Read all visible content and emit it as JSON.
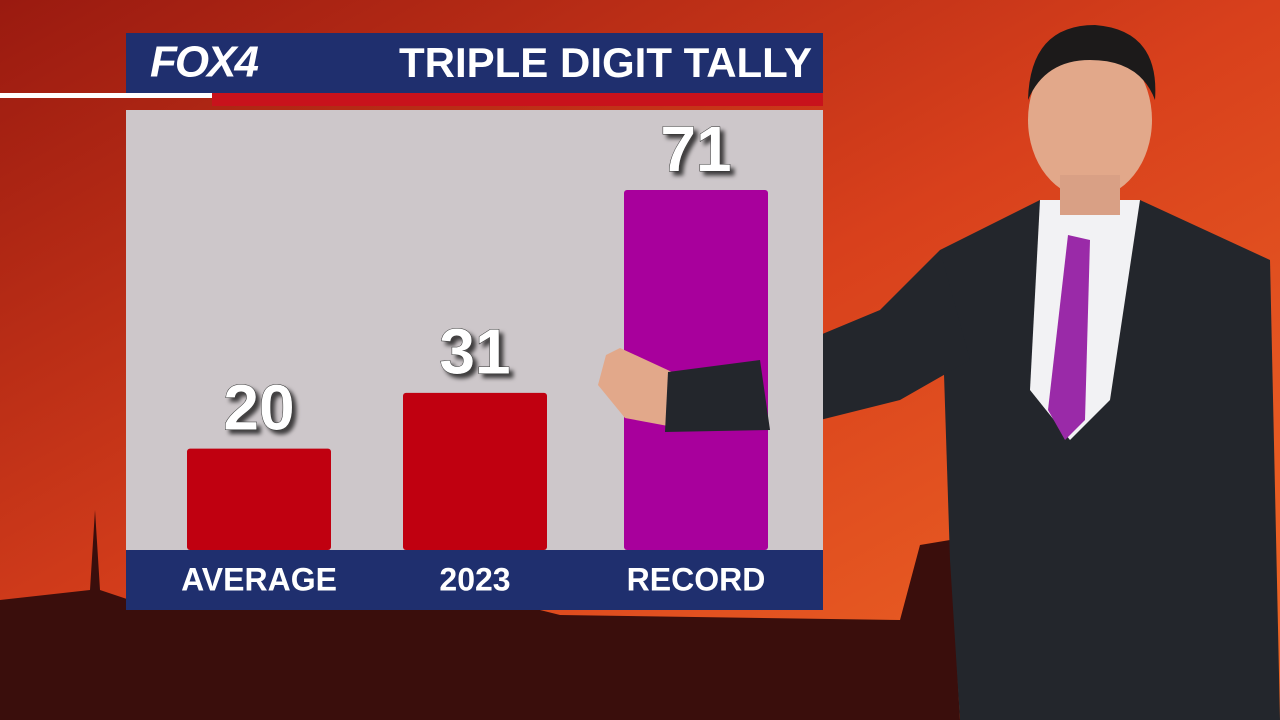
{
  "logo": "FOX4",
  "chart_data": {
    "type": "bar",
    "title": "TRIPLE DIGIT TALLY",
    "categories": [
      "AVERAGE",
      "2023",
      "RECORD"
    ],
    "values": [
      20,
      31,
      71
    ],
    "colors": [
      "#c00010",
      "#c00010",
      "#a8009c"
    ]
  }
}
